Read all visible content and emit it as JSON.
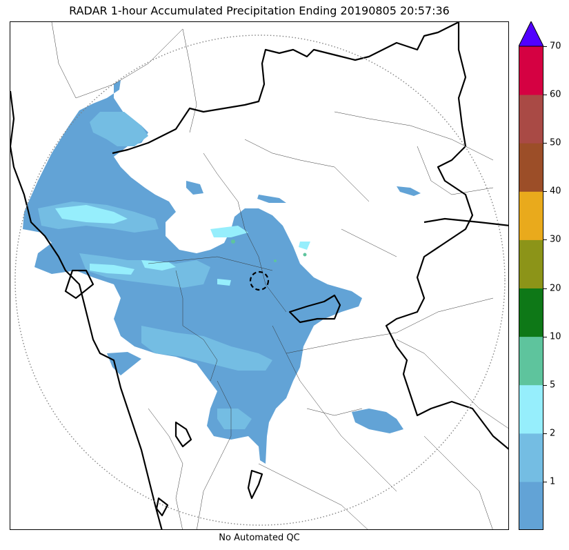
{
  "title": "RADAR 1-hour Accumulated Precipitation Ending 20190805 20:57:36",
  "footer": "No Automated QC",
  "colorbar": {
    "levels": [
      {
        "color": "#62a3d6"
      },
      {
        "label": "1",
        "color": "#74bde3"
      },
      {
        "label": "2",
        "color": "#96eefc"
      },
      {
        "label": "5",
        "color": "#5ec49d"
      },
      {
        "label": "10",
        "color": "#0e7817"
      },
      {
        "label": "20",
        "color": "#8c9418"
      },
      {
        "label": "30",
        "color": "#e9aa1c"
      },
      {
        "label": "40",
        "color": "#9c4e28"
      },
      {
        "label": "50",
        "color": "#a94a45"
      },
      {
        "label": "60",
        "color": "#d50142"
      },
      {
        "label": "70"
      }
    ],
    "extend_color": "#5100ff"
  },
  "map": {
    "range_ring": "dotted-gray",
    "radar_site_marker": "dashed-circle",
    "boundaries": [
      "coastline-thick",
      "state-borders-thick",
      "district-borders-thin"
    ]
  }
}
